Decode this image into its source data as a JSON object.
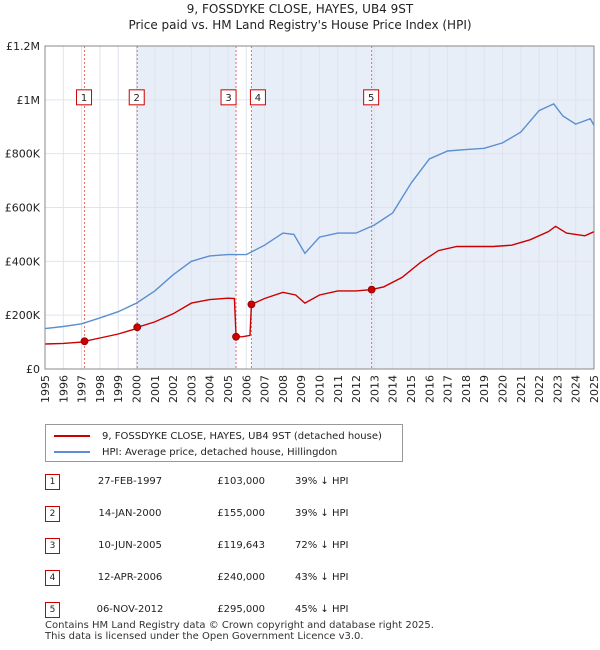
{
  "header": {
    "title_line1": "9, FOSSDYKE CLOSE, HAYES, UB4 9ST",
    "title_line2": "Price paid vs. HM Land Registry's House Price Index (HPI)"
  },
  "legend": {
    "property_label": "9, FOSSDYKE CLOSE, HAYES, UB4 9ST (detached house)",
    "hpi_label": "HPI: Average price, detached house, Hillingdon"
  },
  "transactions": [
    {
      "num": "1",
      "date": "27-FEB-1997",
      "price": "£103,000",
      "hpi": "39% ↓ HPI"
    },
    {
      "num": "2",
      "date": "14-JAN-2000",
      "price": "£155,000",
      "hpi": "39% ↓ HPI"
    },
    {
      "num": "3",
      "date": "10-JUN-2005",
      "price": "£119,643",
      "hpi": "72% ↓ HPI"
    },
    {
      "num": "4",
      "date": "12-APR-2006",
      "price": "£240,000",
      "hpi": "43% ↓ HPI"
    },
    {
      "num": "5",
      "date": "06-NOV-2012",
      "price": "£295,000",
      "hpi": "45% ↓ HPI"
    }
  ],
  "footer": {
    "line1": "Contains HM Land Registry data © Crown copyright and database right 2025.",
    "line2": "This data is licensed under the Open Government Licence v3.0."
  },
  "colors": {
    "property": "#cc0000",
    "hpi": "#5b8fd0",
    "shade": "#e8eef8",
    "grid": "#dde4ef"
  },
  "chart_data": {
    "type": "line",
    "ylim": [
      0,
      1200000
    ],
    "xlim": [
      1995,
      2025
    ],
    "yticks": [
      {
        "v": 0,
        "label": "£0"
      },
      {
        "v": 200000,
        "label": "£200K"
      },
      {
        "v": 400000,
        "label": "£400K"
      },
      {
        "v": 600000,
        "label": "£600K"
      },
      {
        "v": 800000,
        "label": "£800K"
      },
      {
        "v": 1000000,
        "label": "£1M"
      },
      {
        "v": 1200000,
        "label": "£1.2M"
      }
    ],
    "xticks": [
      "1995",
      "1996",
      "1997",
      "1998",
      "1999",
      "2000",
      "2001",
      "2002",
      "2003",
      "2004",
      "2005",
      "2006",
      "2007",
      "2008",
      "2009",
      "2010",
      "2011",
      "2012",
      "2013",
      "2014",
      "2015",
      "2016",
      "2017",
      "2018",
      "2019",
      "2020",
      "2021",
      "2022",
      "2023",
      "2024",
      "2025"
    ],
    "sales": [
      {
        "label": "1",
        "x": 1997.16,
        "y": 103000
      },
      {
        "label": "2",
        "x": 2000.04,
        "y": 155000
      },
      {
        "label": "3",
        "x": 2005.44,
        "y": 119643
      },
      {
        "label": "4",
        "x": 2006.28,
        "y": 240000
      },
      {
        "label": "5",
        "x": 2012.85,
        "y": 295000
      }
    ],
    "series": [
      {
        "name": "9, FOSSDYKE CLOSE, HAYES, UB4 9ST (detached house)",
        "points": [
          [
            1995.0,
            93000
          ],
          [
            1996.0,
            95000
          ],
          [
            1997.0,
            100000
          ],
          [
            1997.16,
            103000
          ],
          [
            1998.0,
            115000
          ],
          [
            1999.0,
            130000
          ],
          [
            2000.0,
            150000
          ],
          [
            2000.04,
            155000
          ],
          [
            2001.0,
            175000
          ],
          [
            2002.0,
            205000
          ],
          [
            2003.0,
            245000
          ],
          [
            2004.0,
            258000
          ],
          [
            2005.0,
            263000
          ],
          [
            2005.35,
            262000
          ],
          [
            2005.44,
            119643
          ],
          [
            2005.8,
            120000
          ],
          [
            2006.2,
            125000
          ],
          [
            2006.28,
            240000
          ],
          [
            2007.0,
            262000
          ],
          [
            2008.0,
            285000
          ],
          [
            2008.7,
            275000
          ],
          [
            2009.2,
            245000
          ],
          [
            2010.0,
            275000
          ],
          [
            2011.0,
            290000
          ],
          [
            2012.0,
            290000
          ],
          [
            2012.85,
            295000
          ],
          [
            2013.5,
            305000
          ],
          [
            2014.5,
            340000
          ],
          [
            2015.5,
            395000
          ],
          [
            2016.5,
            440000
          ],
          [
            2017.5,
            455000
          ],
          [
            2018.5,
            455000
          ],
          [
            2019.5,
            455000
          ],
          [
            2020.5,
            460000
          ],
          [
            2021.5,
            480000
          ],
          [
            2022.5,
            510000
          ],
          [
            2022.9,
            530000
          ],
          [
            2023.5,
            505000
          ],
          [
            2024.5,
            495000
          ],
          [
            2025.0,
            510000
          ]
        ]
      },
      {
        "name": "HPI: Average price, detached house, Hillingdon",
        "points": [
          [
            1995.0,
            150000
          ],
          [
            1996.0,
            158000
          ],
          [
            1997.0,
            168000
          ],
          [
            1998.0,
            190000
          ],
          [
            1999.0,
            213000
          ],
          [
            2000.0,
            245000
          ],
          [
            2001.0,
            290000
          ],
          [
            2002.0,
            350000
          ],
          [
            2003.0,
            400000
          ],
          [
            2004.0,
            420000
          ],
          [
            2005.0,
            425000
          ],
          [
            2006.0,
            425000
          ],
          [
            2007.0,
            460000
          ],
          [
            2008.0,
            505000
          ],
          [
            2008.6,
            500000
          ],
          [
            2009.2,
            430000
          ],
          [
            2010.0,
            490000
          ],
          [
            2011.0,
            505000
          ],
          [
            2012.0,
            505000
          ],
          [
            2013.0,
            535000
          ],
          [
            2014.0,
            580000
          ],
          [
            2015.0,
            690000
          ],
          [
            2016.0,
            780000
          ],
          [
            2017.0,
            810000
          ],
          [
            2018.0,
            815000
          ],
          [
            2019.0,
            820000
          ],
          [
            2020.0,
            840000
          ],
          [
            2021.0,
            880000
          ],
          [
            2022.0,
            960000
          ],
          [
            2022.8,
            985000
          ],
          [
            2023.3,
            940000
          ],
          [
            2024.0,
            910000
          ],
          [
            2024.8,
            930000
          ],
          [
            2025.0,
            905000
          ]
        ]
      }
    ]
  }
}
